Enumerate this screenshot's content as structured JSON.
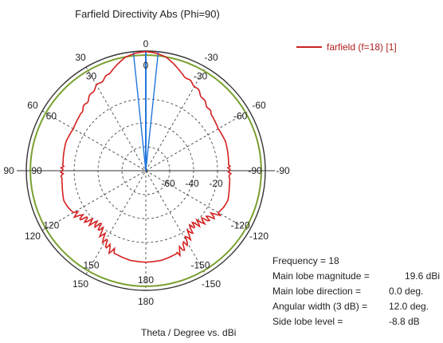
{
  "chart_data": {
    "type": "polar",
    "title": "Farfield Directivity Abs (Phi=90)",
    "xlabel": "Theta / Degree vs. dBi",
    "legend": "farfield (f=18) [1]",
    "legend_position": "top-right",
    "radial_range_db": [
      -80,
      20
    ],
    "radial_ticks": [
      "-60",
      "-40",
      "-20"
    ],
    "outer_angle_labels": [
      {
        "deg": 0,
        "label": "0"
      },
      {
        "deg": 30,
        "label": "30"
      },
      {
        "deg": -30,
        "label": "-30"
      },
      {
        "deg": 60,
        "label": "60"
      },
      {
        "deg": -60,
        "label": "-60"
      },
      {
        "deg": 90,
        "label": "90"
      },
      {
        "deg": -90,
        "label": "-90"
      },
      {
        "deg": 120,
        "label": "120"
      },
      {
        "deg": -120,
        "label": "-120"
      },
      {
        "deg": 150,
        "label": "150"
      },
      {
        "deg": -150,
        "label": "-150"
      },
      {
        "deg": 180,
        "label": "180"
      }
    ],
    "inner_angle_labels": [
      {
        "deg": 0,
        "label": "0"
      },
      {
        "deg": 30,
        "label": "30"
      },
      {
        "deg": -30,
        "label": "-30"
      },
      {
        "deg": 60,
        "label": "60"
      },
      {
        "deg": -60,
        "label": "-60"
      },
      {
        "deg": 90,
        "label": "90"
      },
      {
        "deg": -90,
        "label": "-90"
      },
      {
        "deg": 120,
        "label": "120"
      },
      {
        "deg": -120,
        "label": "-120"
      },
      {
        "deg": 150,
        "label": "150"
      },
      {
        "deg": -150,
        "label": "-150"
      },
      {
        "deg": 180,
        "label": "180"
      }
    ],
    "main_lobe_direction_deg": 0,
    "beamwidth_deg": 12,
    "reference_level_db": 16.6,
    "series": [
      {
        "name": "farfield (f=18) [1]",
        "color": "#d42020",
        "theta_deg": [
          0,
          5,
          10,
          15,
          20,
          25,
          30,
          35,
          40,
          45,
          50,
          55,
          60,
          65,
          70,
          75,
          80,
          85,
          90,
          95,
          100,
          105,
          110,
          115,
          120,
          125,
          130,
          135,
          140,
          145,
          150,
          155,
          160,
          165,
          170,
          175,
          180
        ],
        "directivity_dbi": [
          19.6,
          18.6,
          16.5,
          12,
          7,
          4,
          2,
          -1,
          -4,
          -6,
          -8,
          -9,
          -10,
          -9.5,
          -9,
          -9.5,
          -10,
          -10.5,
          -10,
          -9.5,
          -9,
          -8,
          -7,
          -8,
          -10,
          -13,
          -16,
          -18,
          -20,
          -16,
          -12,
          -8,
          -6,
          -5,
          -4,
          -3.8,
          -3.5
        ]
      }
    ]
  },
  "info": {
    "rows": [
      {
        "label": "Frequency = 18",
        "value": ""
      },
      {
        "label": "Main lobe magnitude =",
        "value": "19.6 dBi"
      },
      {
        "label": "Main lobe direction =",
        "value": "0.0 deg."
      },
      {
        "label": "Angular width (3 dB) =",
        "value": "12.0 deg."
      },
      {
        "label": "Side lobe level =",
        "value": "-8.8 dB"
      }
    ]
  },
  "colors": {
    "trace": "#d42020",
    "reference_circle": "#7aa030",
    "beam_lines": "#2277dd",
    "grid": "#333333"
  }
}
